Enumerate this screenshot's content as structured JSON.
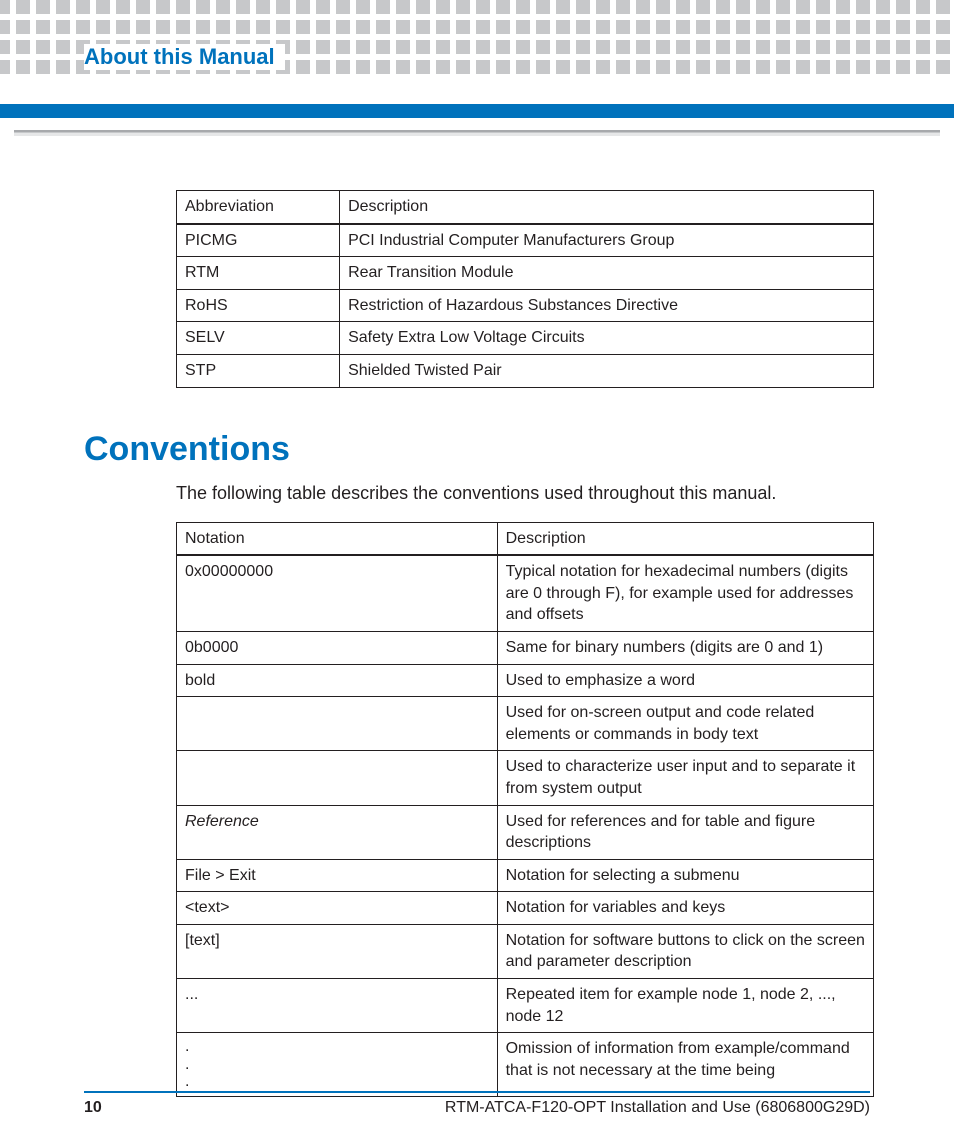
{
  "colors": {
    "accent": "#0072bc",
    "dot": "#c7c8ca",
    "text": "#231f20",
    "grayRule": "#a7a9ac"
  },
  "header": {
    "section_title": "About this Manual"
  },
  "abbr_table": {
    "columns": [
      "Abbreviation",
      "Description"
    ],
    "rows": [
      [
        "PICMG",
        "PCI Industrial Computer Manufacturers Group"
      ],
      [
        "RTM",
        "Rear Transition Module"
      ],
      [
        "RoHS",
        "Restriction of Hazardous Substances Directive"
      ],
      [
        "SELV",
        "Safety Extra Low Voltage Circuits"
      ],
      [
        "STP",
        "Shielded Twisted Pair"
      ]
    ]
  },
  "conventions": {
    "heading": "Conventions",
    "intro": "The following table describes the conventions used throughout this manual.",
    "columns": [
      "Notation",
      "Description"
    ],
    "rows": [
      {
        "n": "0x00000000",
        "d": "Typical notation for hexadecimal numbers (digits are 0 through F), for example used for addresses and offsets"
      },
      {
        "n": "0b0000",
        "d": "Same for binary numbers (digits are 0 and 1)"
      },
      {
        "n": "bold",
        "d": "Used to emphasize a word"
      },
      {
        "n": "",
        "d": "Used for on-screen output and code related elements or commands in body text"
      },
      {
        "n": "",
        "d": "Used to characterize user input and to separate it from system output"
      },
      {
        "n": "Reference",
        "italic": true,
        "d": "Used for references and for table and figure descriptions"
      },
      {
        "n": "File > Exit",
        "d": "Notation for selecting a submenu"
      },
      {
        "n": "<text>",
        "d": "Notation for  variables and keys"
      },
      {
        "n": "[text]",
        "d": "Notation for software buttons to click on the screen and parameter description"
      },
      {
        "n": "...",
        "d": "Repeated item for example node 1, node 2, ..., node 12"
      },
      {
        "n": ".\n.\n.",
        "multiline": true,
        "d": "Omission of information from example/command that is not necessary at the time being"
      }
    ]
  },
  "footer": {
    "page": "10",
    "doc": "RTM-ATCA-F120-OPT Installation and Use (6806800G29D)"
  }
}
